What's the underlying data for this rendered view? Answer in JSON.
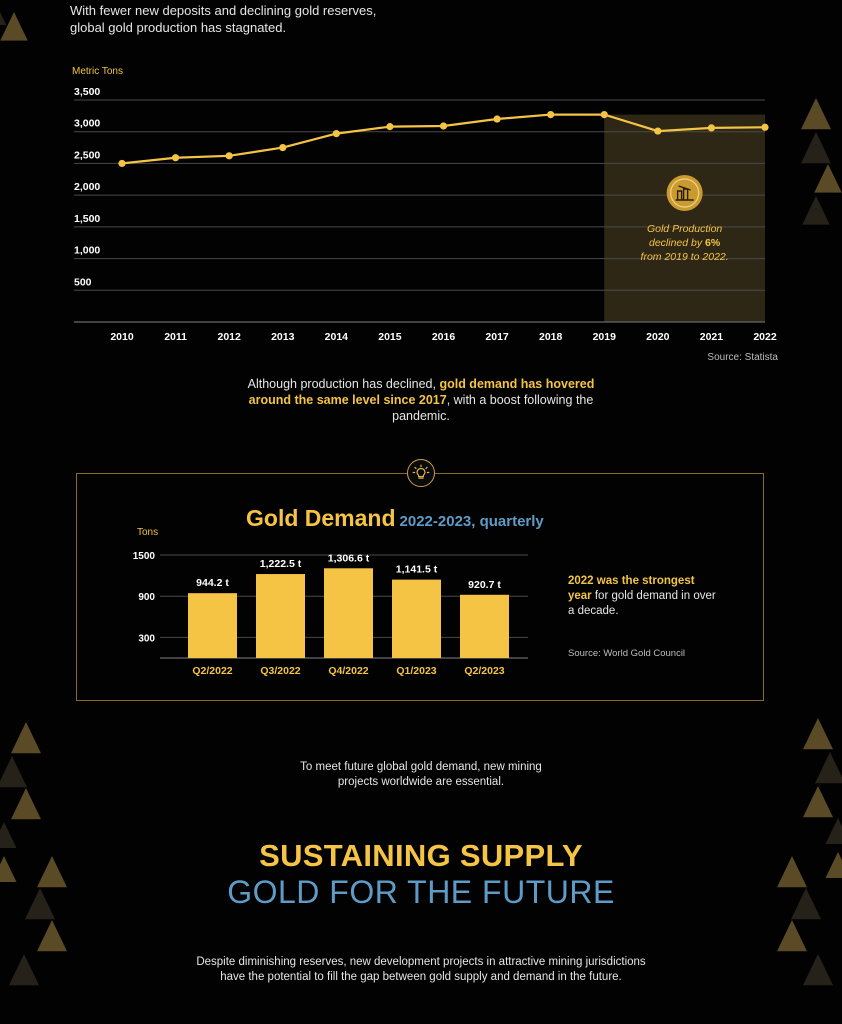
{
  "intro": {
    "line1": "With fewer new deposits and declining gold reserves,",
    "line2": "global gold production has stagnated."
  },
  "production": {
    "unit_label": "Metric Tons",
    "source": "Source: Statista",
    "annotation": {
      "line1": "Gold Production",
      "line2_prefix": "declined by ",
      "line2_value": "6%",
      "line3": "from 2019 to 2022."
    }
  },
  "middle_text": {
    "part1": "Although production has declined, ",
    "highlight": "gold demand has hovered around the same level since 2017",
    "part2": ", with a boost following the pandemic."
  },
  "demand": {
    "title": "Gold Demand",
    "subtitle": "2022-2023, quarterly",
    "unit_label": "Tons",
    "note_highlight": "2022 was the strongest year",
    "note_rest": " for gold demand in over a decade.",
    "source": "Source: World Gold Council"
  },
  "future_text": {
    "line1": "To meet future global gold demand, new mining",
    "line2": "projects worldwide are essential."
  },
  "sustain_title": "SUSTAINING SUPPLY",
  "future_title": "GOLD FOR THE FUTURE",
  "bottom_text": {
    "line1": "Despite diminishing reserves, new development projects in attractive mining jurisdictions",
    "line2": "have the potential to fill the gap between gold supply and demand in the future."
  },
  "colors": {
    "gold": "#f5c445",
    "blue": "#5e9cc7",
    "background": "#020202",
    "shade": "#2e2715"
  },
  "icons": {
    "badge": "gold-mine-icon",
    "bulb": "lightbulb-icon"
  },
  "chart_data": [
    {
      "type": "line",
      "title": "",
      "ylabel": "Metric Tons",
      "x": [
        "2010",
        "2011",
        "2012",
        "2013",
        "2014",
        "2015",
        "2016",
        "2017",
        "2018",
        "2019",
        "2020",
        "2021",
        "2022"
      ],
      "series": [
        {
          "values": [
            2500,
            2590,
            2620,
            2750,
            2970,
            3080,
            3090,
            3200,
            3270,
            3270,
            3010,
            3060,
            3070
          ]
        }
      ],
      "ylim": [
        0,
        3500
      ],
      "yticks": [
        500,
        1000,
        1500,
        2000,
        2500,
        3000,
        3500
      ],
      "ytick_labels": [
        "500",
        "1,000",
        "1,500",
        "2,000",
        "2,500",
        "3,000",
        "3,500"
      ],
      "highlight_range": [
        "2019",
        "2022"
      ],
      "grid": true
    },
    {
      "type": "bar",
      "title": "Gold Demand",
      "subtitle": "2022-2023, quarterly",
      "ylabel": "Tons",
      "categories": [
        "Q2/2022",
        "Q3/2022",
        "Q4/2022",
        "Q1/2023",
        "Q2/2023"
      ],
      "values": [
        944.2,
        1222.5,
        1306.6,
        1141.5,
        920.7
      ],
      "data_labels": [
        "944.2 t",
        "1,222.5 t",
        "1,306.6 t",
        "1,141.5 t",
        "920.7 t"
      ],
      "ylim": [
        0,
        1500
      ],
      "yticks": [
        300,
        900,
        1500
      ],
      "ytick_labels": [
        "300",
        "900",
        "1500"
      ],
      "grid": true
    }
  ]
}
